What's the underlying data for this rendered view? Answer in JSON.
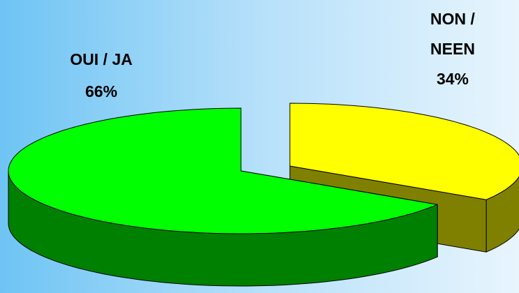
{
  "chart_data": {
    "type": "pie3d",
    "categories": [
      "OUI / JA",
      "NON / NEEN"
    ],
    "values": [
      66,
      34
    ],
    "value_labels": [
      "66%",
      "34%"
    ],
    "colors": [
      "#00ff00",
      "#ffff00"
    ]
  }
}
